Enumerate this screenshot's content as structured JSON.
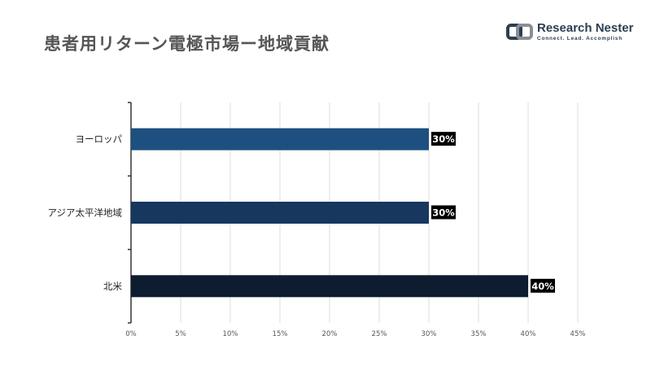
{
  "title": "患者用リターン電極市場ー地域貢献",
  "logo": {
    "name": "Research Nester",
    "tagline": "Connect. Lead. Accomplish"
  },
  "colors": {
    "europe": "#1d4f80",
    "asia_pacific": "#17375e",
    "north_america": "#0d1c2e",
    "label_bg": "#000000",
    "label_text": "#ffffff"
  },
  "chart_data": {
    "type": "bar",
    "orientation": "horizontal",
    "categories": [
      "ヨーロッパ",
      "アジア太平洋地域",
      "北米"
    ],
    "values": [
      30,
      30,
      40
    ],
    "data_labels": [
      "30%",
      "30%",
      "40%"
    ],
    "xlim": [
      0,
      45
    ],
    "xticks": [
      "0%",
      "5%",
      "10%",
      "15%",
      "20%",
      "25%",
      "30%",
      "35%",
      "40%",
      "45%"
    ],
    "grid": "vertical",
    "legend": "none"
  }
}
